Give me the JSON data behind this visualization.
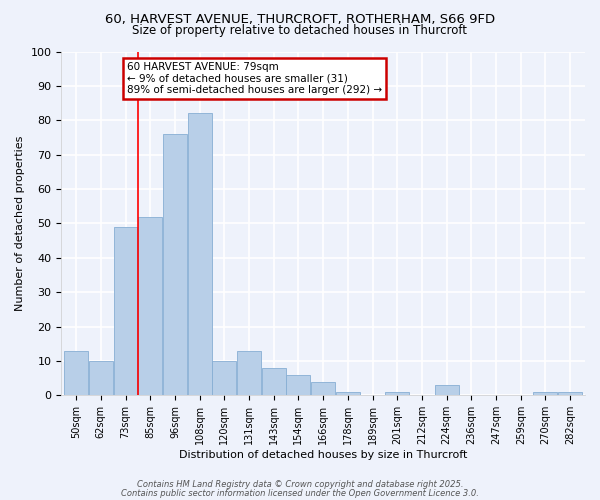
{
  "title_line1": "60, HARVEST AVENUE, THURCROFT, ROTHERHAM, S66 9FD",
  "title_line2": "Size of property relative to detached houses in Thurcroft",
  "xlabel": "Distribution of detached houses by size in Thurcroft",
  "ylabel": "Number of detached properties",
  "bar_labels": [
    "50sqm",
    "62sqm",
    "73sqm",
    "85sqm",
    "96sqm",
    "108sqm",
    "120sqm",
    "131sqm",
    "143sqm",
    "154sqm",
    "166sqm",
    "178sqm",
    "189sqm",
    "201sqm",
    "212sqm",
    "224sqm",
    "236sqm",
    "247sqm",
    "259sqm",
    "270sqm",
    "282sqm"
  ],
  "bar_values": [
    13,
    10,
    49,
    52,
    76,
    82,
    10,
    13,
    8,
    6,
    4,
    1,
    0,
    1,
    0,
    3,
    0,
    0,
    0,
    1,
    1
  ],
  "bar_color": "#b8cfe8",
  "bar_edgecolor": "#87aed4",
  "background_color": "#eef2fb",
  "grid_color": "#ffffff",
  "annotation_text": "60 HARVEST AVENUE: 79sqm\n← 9% of detached houses are smaller (31)\n89% of semi-detached houses are larger (292) →",
  "annotation_box_facecolor": "#ffffff",
  "annotation_box_edgecolor": "#cc0000",
  "ylim": [
    0,
    100
  ],
  "yticks": [
    0,
    10,
    20,
    30,
    40,
    50,
    60,
    70,
    80,
    90,
    100
  ],
  "footer_line1": "Contains HM Land Registry data © Crown copyright and database right 2025.",
  "footer_line2": "Contains public sector information licensed under the Open Government Licence 3.0.",
  "red_line_index": 2.5
}
